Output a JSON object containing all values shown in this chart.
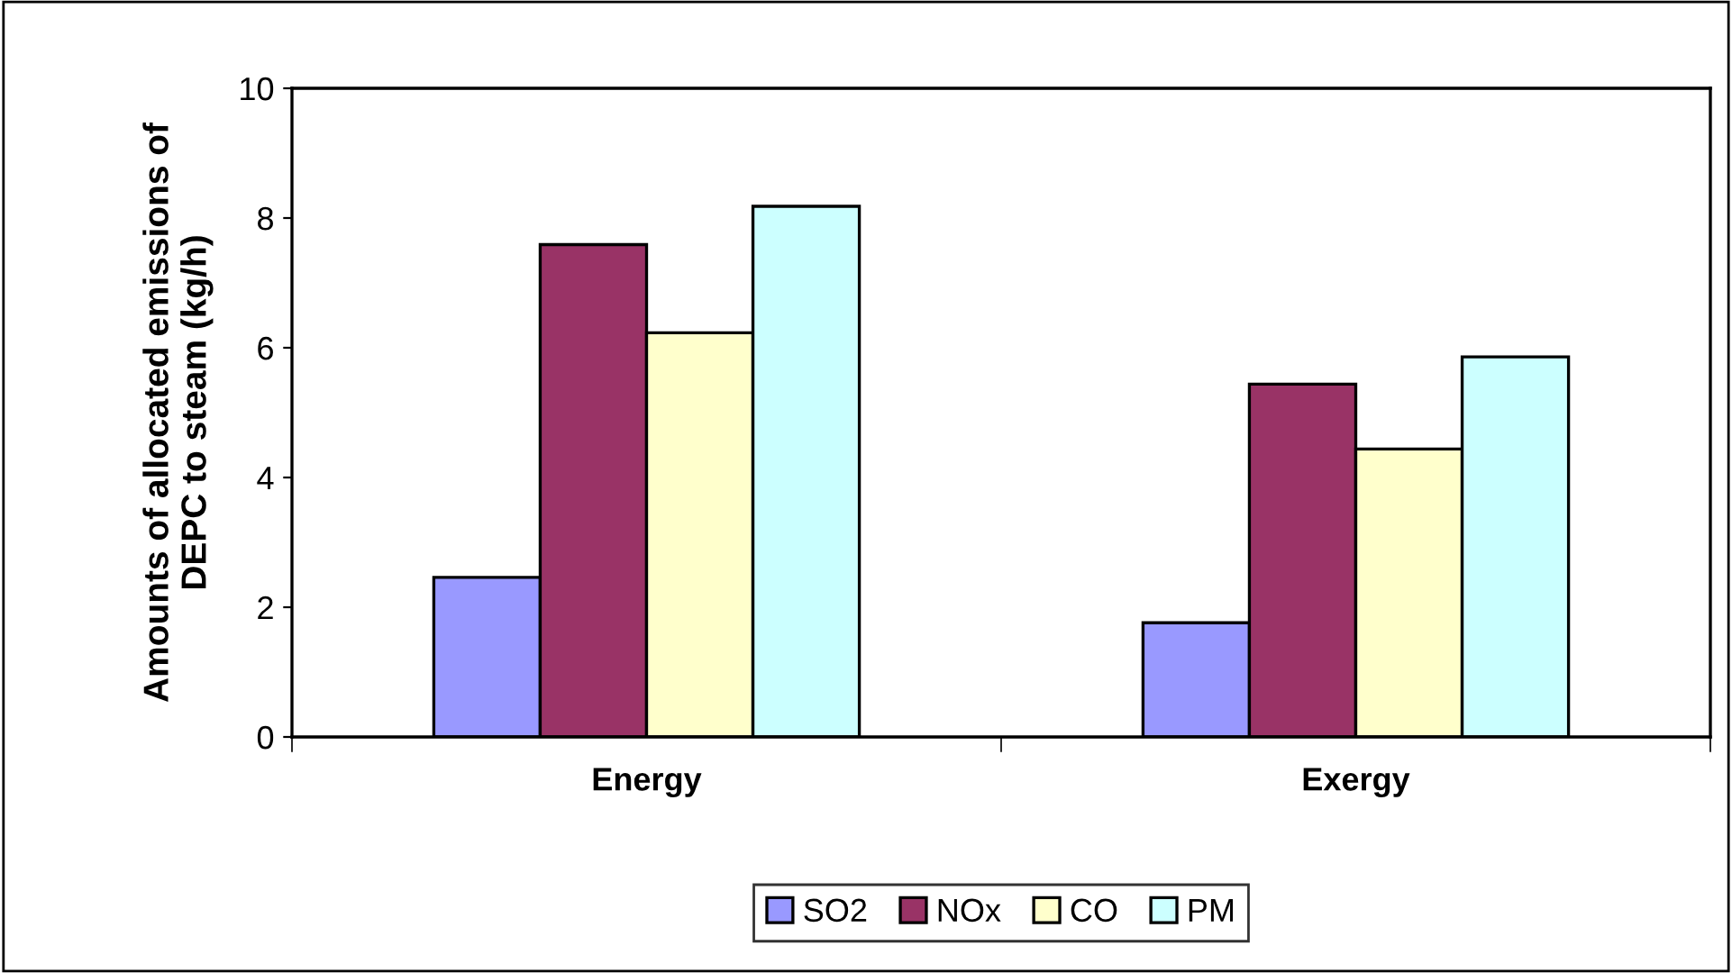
{
  "chart_data": {
    "type": "bar",
    "ylabel": "Amounts of allocated emissions of\nDEPC to steam (kg/h)",
    "categories": [
      "Energy",
      "Exergy"
    ],
    "series": [
      {
        "name": "SO2",
        "color": "#9999ff",
        "values": [
          2.46,
          1.76
        ]
      },
      {
        "name": "NOx",
        "color": "#993366",
        "values": [
          7.59,
          5.44
        ]
      },
      {
        "name": "CO",
        "color": "#ffffcc",
        "values": [
          6.23,
          4.44
        ]
      },
      {
        "name": "PM",
        "color": "#ccffff",
        "values": [
          8.18,
          5.86
        ]
      }
    ],
    "ylim": [
      0,
      10
    ],
    "yticks": [
      0,
      2,
      4,
      6,
      8,
      10
    ],
    "grid": false,
    "legend": "bottom"
  }
}
